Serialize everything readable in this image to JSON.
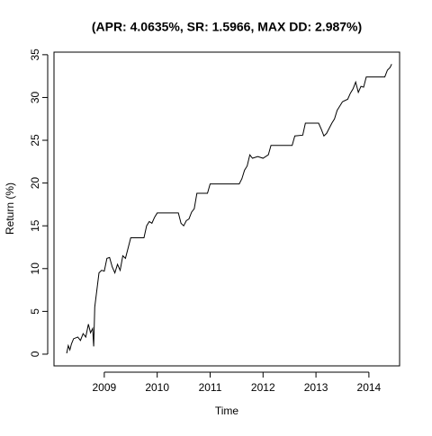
{
  "chart_data": {
    "type": "line",
    "title": "(APR: 4.0635%, SR: 1.5966, MAX DD: 2.987%)",
    "x_label": "Time",
    "y_label": "Return (%)",
    "x": [
      2008.29,
      2008.32,
      2008.35,
      2008.38,
      2008.42,
      2008.5,
      2008.55,
      2008.6,
      2008.65,
      2008.7,
      2008.74,
      2008.78,
      2008.8,
      2008.82,
      2008.86,
      2008.9,
      2008.95,
      2009.0,
      2009.05,
      2009.1,
      2009.15,
      2009.2,
      2009.25,
      2009.3,
      2009.35,
      2009.4,
      2009.45,
      2009.5,
      2009.75,
      2009.8,
      2009.85,
      2009.9,
      2009.95,
      2010.0,
      2010.4,
      2010.45,
      2010.5,
      2010.55,
      2010.6,
      2010.65,
      2010.7,
      2010.75,
      2010.95,
      2011.0,
      2011.55,
      2011.6,
      2011.65,
      2011.7,
      2011.75,
      2011.8,
      2011.9,
      2012.0,
      2012.1,
      2012.15,
      2012.55,
      2012.6,
      2012.75,
      2012.8,
      2013.05,
      2013.1,
      2013.15,
      2013.2,
      2013.3,
      2013.35,
      2013.4,
      2013.45,
      2013.5,
      2013.6,
      2013.65,
      2013.7,
      2013.75,
      2013.8,
      2013.85,
      2013.9,
      2013.95,
      2014.3,
      2014.35,
      2014.4,
      2014.43
    ],
    "series": [
      {
        "name": "Return",
        "color": "#000000",
        "values": [
          0.1,
          1.0,
          0.5,
          1.2,
          1.8,
          2.0,
          1.6,
          2.4,
          2.0,
          3.5,
          2.5,
          3.0,
          0.9,
          5.5,
          7.5,
          9.5,
          9.8,
          9.7,
          11.2,
          11.3,
          10.2,
          9.5,
          10.5,
          9.8,
          11.5,
          11.2,
          12.4,
          13.6,
          13.6,
          15.0,
          15.5,
          15.3,
          16.0,
          16.5,
          16.5,
          15.3,
          15.0,
          15.6,
          15.8,
          16.6,
          17.0,
          18.8,
          18.8,
          19.9,
          19.9,
          20.5,
          21.5,
          22.0,
          23.3,
          22.9,
          23.1,
          22.9,
          23.3,
          24.4,
          24.4,
          25.5,
          25.6,
          27.0,
          27.0,
          26.3,
          25.5,
          25.8,
          27.0,
          27.5,
          28.5,
          29.0,
          29.5,
          29.8,
          30.5,
          31.0,
          31.8,
          30.6,
          31.3,
          31.2,
          32.4,
          32.4,
          33.2,
          33.5,
          33.9
        ]
      }
    ],
    "xlim": [
      2008.05,
      2014.58
    ],
    "xticks": [
      2009,
      2010,
      2011,
      2012,
      2013,
      2014
    ],
    "ylim": [
      -1.37,
      35.3
    ],
    "yticks": [
      0,
      5,
      10,
      15,
      20,
      25,
      30,
      35
    ]
  }
}
